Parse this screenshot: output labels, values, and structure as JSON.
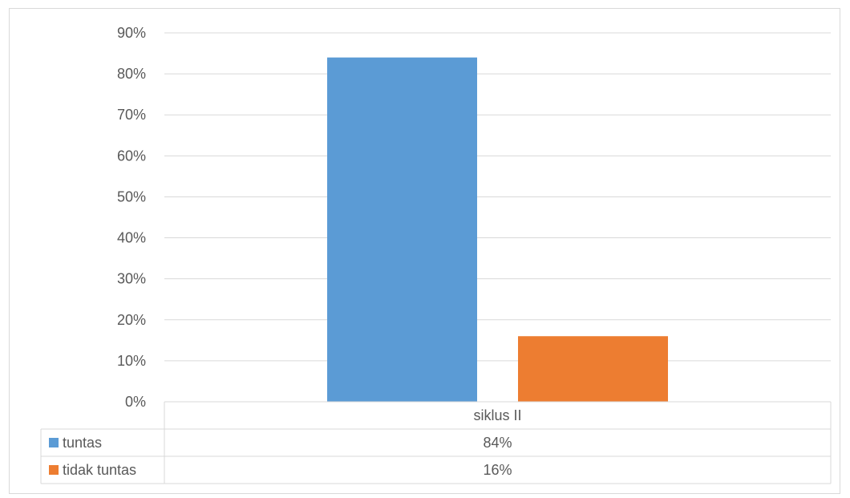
{
  "chart_data": {
    "type": "bar",
    "categories": [
      "siklus II"
    ],
    "series": [
      {
        "name": "tuntas",
        "values": [
          0.84
        ],
        "label": "84%",
        "color": "#5b9bd5"
      },
      {
        "name": "tidak tuntas",
        "values": [
          0.16
        ],
        "label": "16%",
        "color": "#ed7d31"
      }
    ],
    "yticks": [
      "0%",
      "10%",
      "20%",
      "30%",
      "40%",
      "50%",
      "60%",
      "70%",
      "80%",
      "90%"
    ],
    "ylim": [
      0,
      0.9
    ],
    "grid": true,
    "legend": "data-table",
    "title": "",
    "xlabel": "",
    "ylabel": ""
  }
}
